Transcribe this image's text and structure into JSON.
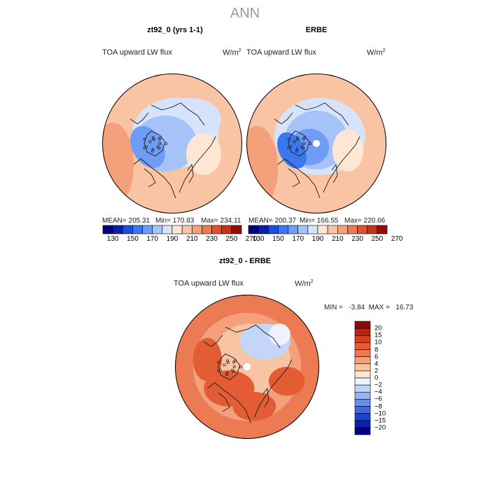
{
  "main_title": "ANN",
  "panels": [
    {
      "title": "zt92_0 (yrs 1-1)",
      "variable": "TOA upward LW flux",
      "units": "W/m",
      "units_sup": "2",
      "mean_label": "MEAN= 205.31",
      "min_label": "Min= 170.83",
      "max_label": "Max= 234.11"
    },
    {
      "title": "ERBE",
      "variable": "TOA upward LW flux",
      "units": "W/m",
      "units_sup": "2",
      "mean_label": "MEAN= 200.37",
      "min_label": "Min= 166.55",
      "max_label": "Max= 220.66"
    }
  ],
  "diff_panel": {
    "title": "zt92_0 - ERBE",
    "variable": "TOA upward LW flux",
    "units": "W/m",
    "units_sup": "2",
    "minmax_label": "MIN =   -3.84  MAX =   16.73"
  },
  "colors": {
    "abs_scale": [
      "#00007a",
      "#0a1fa6",
      "#1f4fd6",
      "#3b78ee",
      "#6f9cf4",
      "#a6c3f7",
      "#d6e3fb",
      "#fde6d4",
      "#f8c4a4",
      "#f3a07b",
      "#ec7a53",
      "#e2512f",
      "#c8301a",
      "#960c08"
    ],
    "diff_scale": [
      "#00008a",
      "#0a20b0",
      "#1c44d4",
      "#3a6ae8",
      "#6690f0",
      "#95b4f5",
      "#c3d6fa",
      "#eef2fc",
      "#fde6d4",
      "#f8c4a4",
      "#f3a07b",
      "#ec7a53",
      "#e45c34",
      "#d53e1f",
      "#b82414",
      "#8c0a08"
    ],
    "land": "#1a1a1a"
  },
  "chart_data": [
    {
      "type": "heatmap",
      "title": "zt92_0 (yrs 1-1)",
      "projection": "polar stereographic (north pole)",
      "variable": "TOA upward LW flux",
      "units": "W/m2",
      "mean": 205.31,
      "min": 170.83,
      "max": 234.11,
      "colorbar_levels": [
        130,
        150,
        170,
        190,
        210,
        230,
        250,
        270
      ],
      "colorbar_bins": 14
    },
    {
      "type": "heatmap",
      "title": "ERBE",
      "projection": "polar stereographic (north pole)",
      "variable": "TOA upward LW flux",
      "units": "W/m2",
      "mean": 200.37,
      "min": 166.55,
      "max": 220.66,
      "colorbar_levels": [
        130,
        150,
        170,
        190,
        210,
        230,
        250,
        270
      ],
      "colorbar_bins": 14
    },
    {
      "type": "heatmap",
      "title": "zt92_0 - ERBE",
      "projection": "polar stereographic (north pole)",
      "variable": "TOA upward LW flux",
      "units": "W/m2",
      "min": -3.84,
      "max": 16.73,
      "colorbar_levels": [
        20,
        15,
        10,
        8,
        6,
        4,
        2,
        0,
        -2,
        -4,
        -6,
        -8,
        -10,
        -15,
        -20
      ]
    }
  ]
}
